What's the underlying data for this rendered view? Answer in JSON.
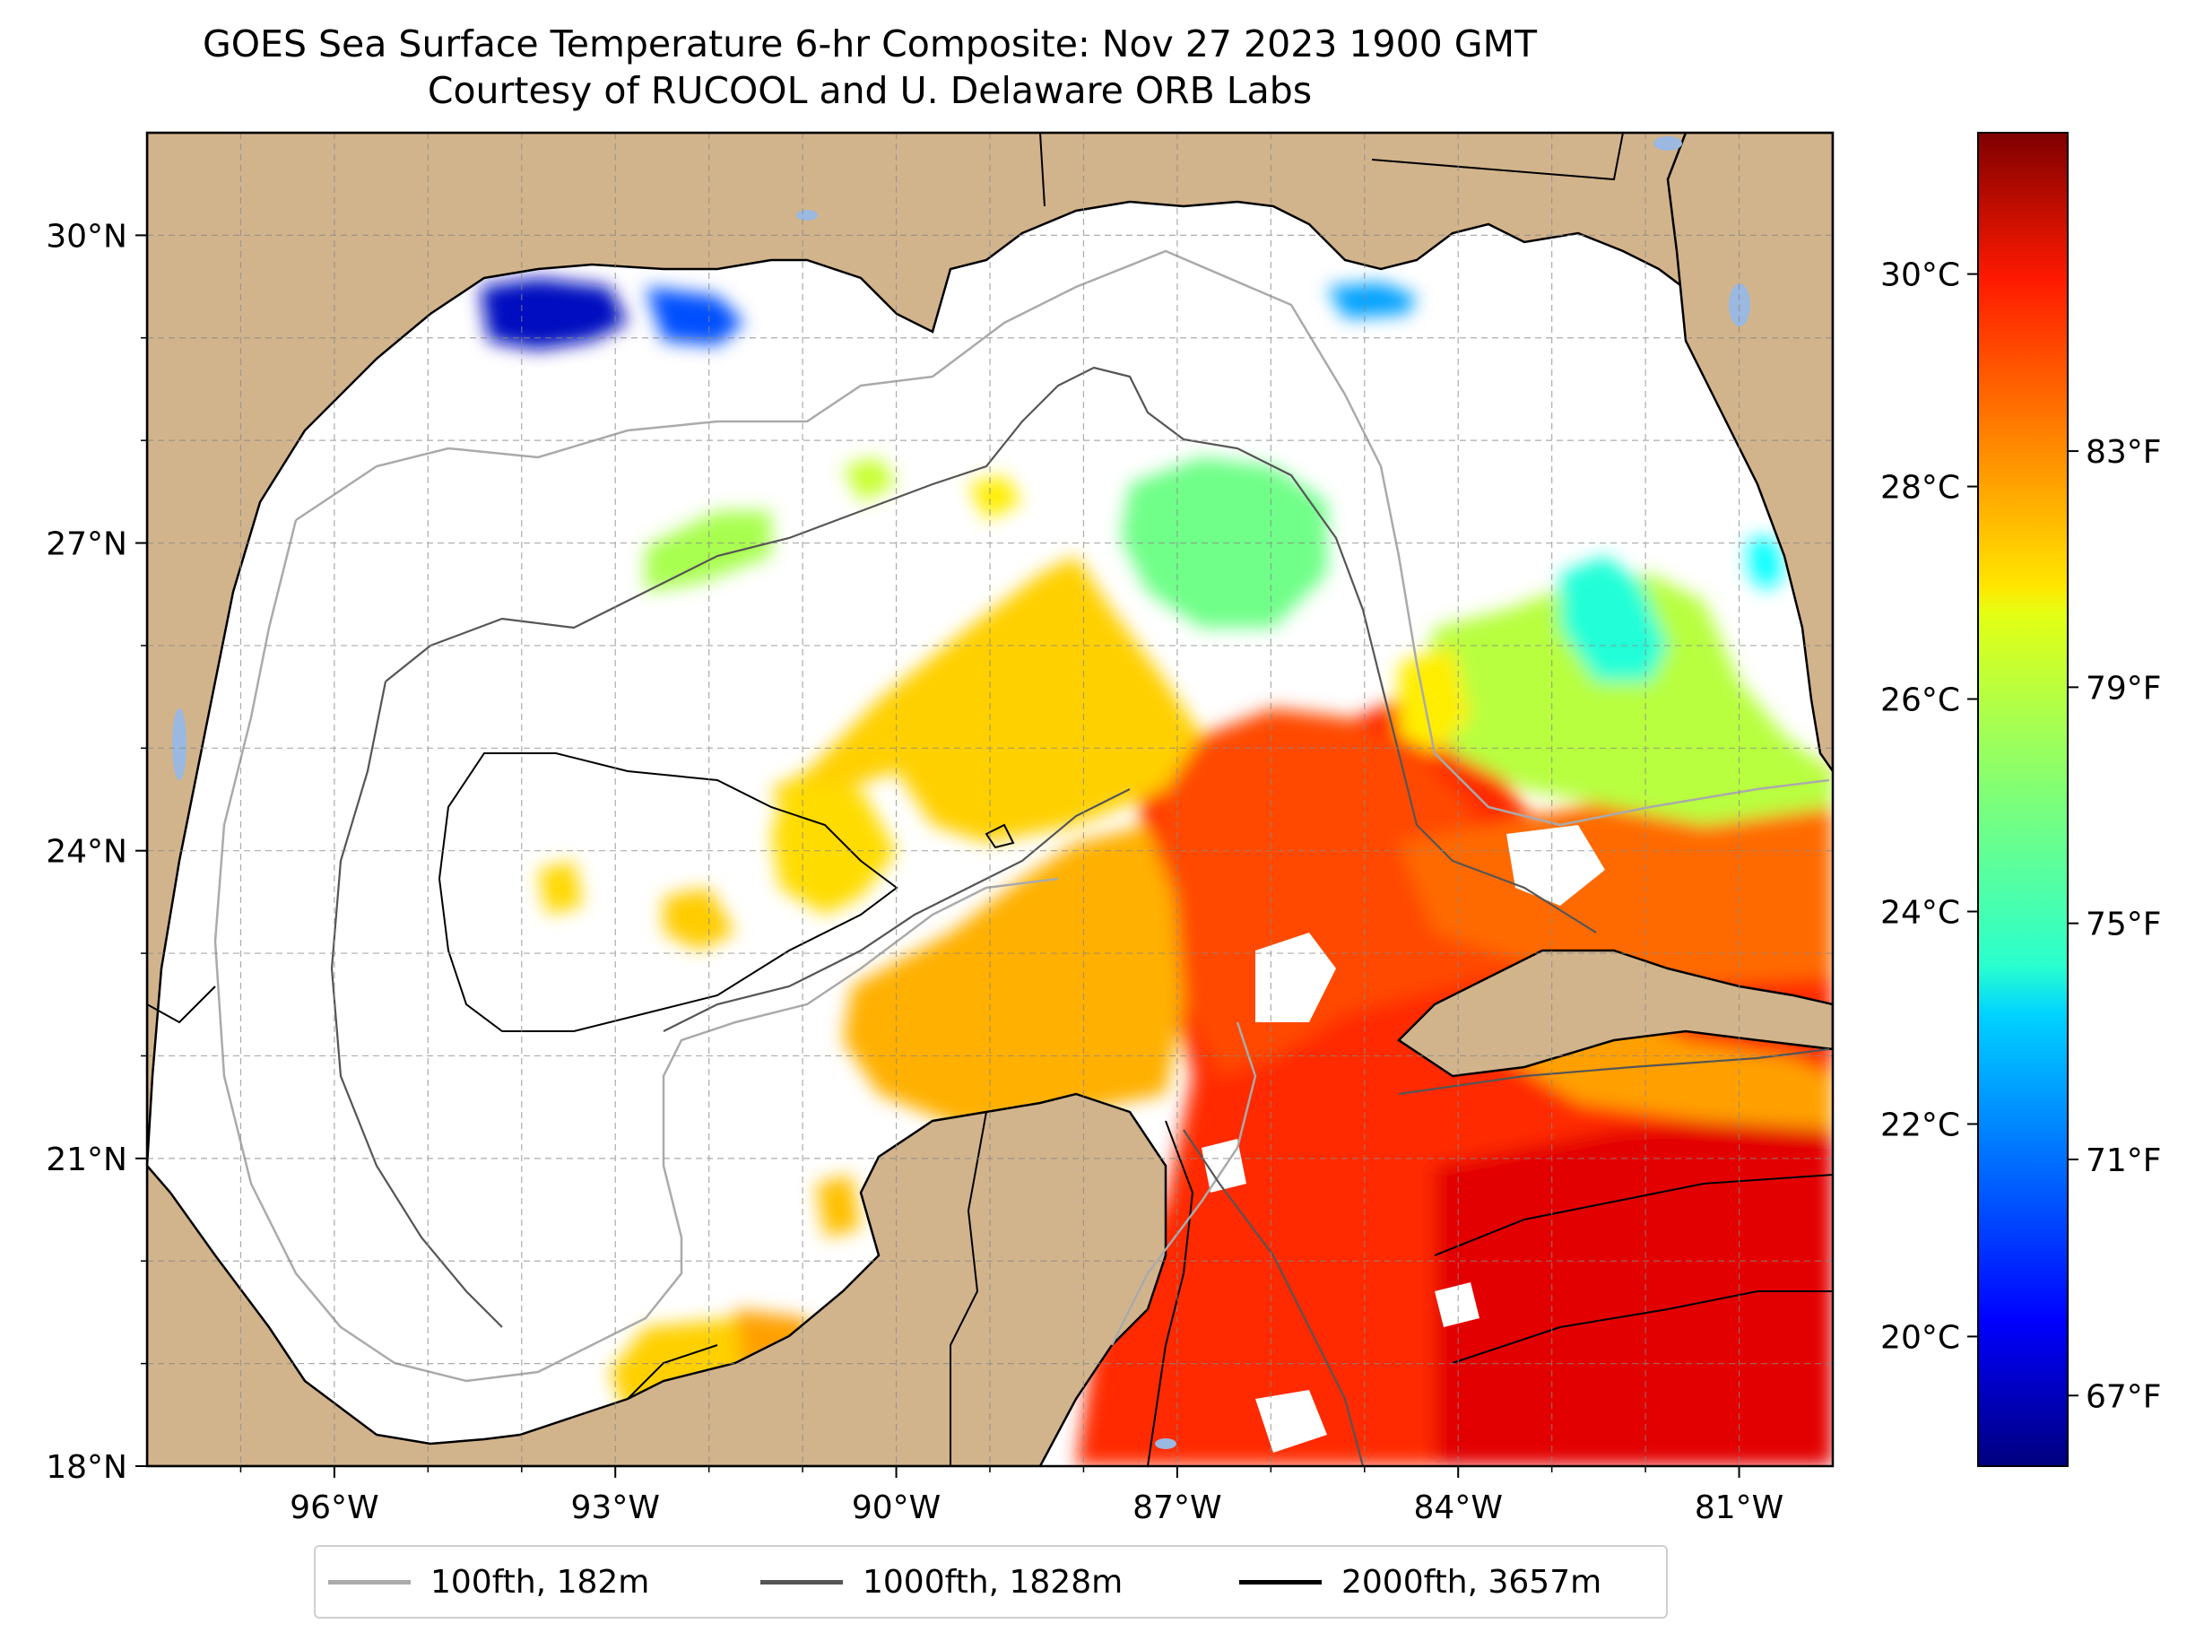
{
  "title": {
    "line1": "GOES Sea Surface Temperature 6-hr Composite: Nov 27 2023 1900 GMT",
    "line2": "Courtesy of RUCOOL and U. Delaware ORB Labs"
  },
  "map": {
    "lon_range": [
      -98,
      -80
    ],
    "lat_range": [
      18,
      31
    ],
    "lon_ticks": [
      {
        "value": -96,
        "label": "96°W"
      },
      {
        "value": -93,
        "label": "93°W"
      },
      {
        "value": -90,
        "label": "90°W"
      },
      {
        "value": -87,
        "label": "87°W"
      },
      {
        "value": -84,
        "label": "84°W"
      },
      {
        "value": -81,
        "label": "81°W"
      }
    ],
    "lat_ticks": [
      {
        "value": 18,
        "label": "18°N"
      },
      {
        "value": 21,
        "label": "21°N"
      },
      {
        "value": 24,
        "label": "24°N"
      },
      {
        "value": 27,
        "label": "27°N"
      },
      {
        "value": 30,
        "label": "30°N"
      }
    ],
    "land_color": "#d2b48c",
    "ocean_nodata_color": "#ffffff",
    "water_body_color": "#9ab8e0",
    "gridlines": "dashed"
  },
  "colorbar": {
    "colormap": "jet",
    "celsius_ticks": [
      {
        "value": 20,
        "label": "20°C"
      },
      {
        "value": 22,
        "label": "22°C"
      },
      {
        "value": 24,
        "label": "24°C"
      },
      {
        "value": 26,
        "label": "26°C"
      },
      {
        "value": 28,
        "label": "28°C"
      },
      {
        "value": 30,
        "label": "30°C"
      }
    ],
    "fahrenheit_ticks": [
      {
        "value": 67,
        "label": "67°F"
      },
      {
        "value": 71,
        "label": "71°F"
      },
      {
        "value": 75,
        "label": "75°F"
      },
      {
        "value": 79,
        "label": "79°F"
      },
      {
        "value": 83,
        "label": "83°F"
      }
    ]
  },
  "legend": [
    {
      "label": "100fth, 182m",
      "color": "#aaaaaa"
    },
    {
      "label": "1000fth, 1828m",
      "color": "#555555"
    },
    {
      "label": "2000fth, 3657m",
      "color": "#000000"
    }
  ]
}
